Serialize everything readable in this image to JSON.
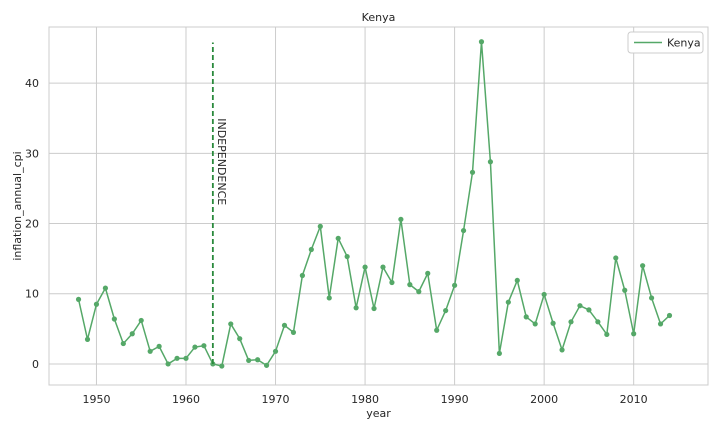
{
  "chart_data": {
    "type": "line",
    "title": "Kenya",
    "xlabel": "year",
    "ylabel": "inflation_annual_cpi",
    "xlim": [
      1944.7,
      2018.3
    ],
    "ylim": [
      -3,
      48
    ],
    "xticks": [
      1950,
      1960,
      1970,
      1980,
      1990,
      2000,
      2010
    ],
    "yticks": [
      0,
      10,
      20,
      30,
      40
    ],
    "grid": true,
    "legend": {
      "position": "top-right",
      "entries": [
        "Kenya"
      ]
    },
    "colors": {
      "series": "#55a868",
      "grid": "#cccccc",
      "frame": "#cccccc",
      "text": "#262626",
      "annotation_line": "#2a8a3c"
    },
    "series": [
      {
        "name": "Kenya",
        "x": [
          1948,
          1949,
          1950,
          1951,
          1952,
          1953,
          1954,
          1955,
          1956,
          1957,
          1958,
          1959,
          1960,
          1961,
          1962,
          1963,
          1964,
          1965,
          1966,
          1967,
          1968,
          1969,
          1970,
          1971,
          1972,
          1973,
          1974,
          1975,
          1976,
          1977,
          1978,
          1979,
          1980,
          1981,
          1982,
          1983,
          1984,
          1985,
          1986,
          1987,
          1988,
          1989,
          1990,
          1991,
          1992,
          1993,
          1994,
          1995,
          1996,
          1997,
          1998,
          1999,
          2000,
          2001,
          2002,
          2003,
          2004,
          2005,
          2006,
          2007,
          2008,
          2009,
          2010,
          2011,
          2012,
          2013,
          2014
        ],
        "y": [
          9.2,
          3.5,
          8.5,
          10.8,
          6.4,
          2.9,
          4.3,
          6.2,
          1.8,
          2.5,
          0.0,
          0.8,
          0.8,
          2.4,
          2.6,
          0.0,
          -0.3,
          5.7,
          3.6,
          0.5,
          0.6,
          -0.2,
          1.8,
          5.5,
          4.5,
          12.6,
          16.3,
          19.6,
          9.4,
          17.9,
          15.3,
          8.0,
          13.8,
          7.9,
          13.8,
          11.6,
          20.6,
          11.3,
          10.3,
          12.9,
          4.8,
          7.6,
          11.2,
          19.0,
          27.3,
          45.9,
          28.8,
          1.5,
          8.8,
          11.9,
          6.7,
          5.7,
          9.9,
          5.8,
          2.0,
          6.0,
          8.3,
          7.7,
          6.0,
          4.2,
          15.1,
          10.5,
          4.3,
          14.0,
          9.4,
          5.7,
          6.9
        ]
      }
    ],
    "annotations": [
      {
        "type": "vline",
        "x": 1963,
        "y_range": [
          0,
          45.8
        ],
        "style": "dashed",
        "text": "INDEPENDENCE",
        "text_y": 35
      }
    ]
  }
}
